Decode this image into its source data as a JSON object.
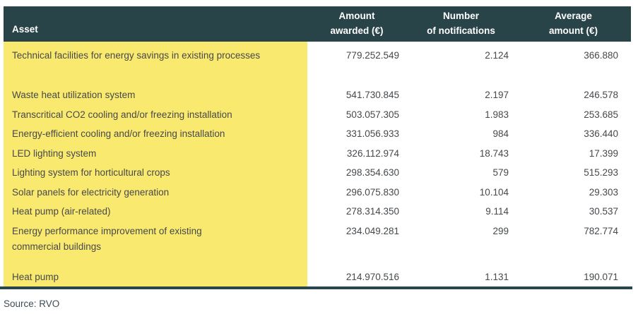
{
  "table": {
    "header": {
      "asset": "Asset",
      "amount_l1": "Amount",
      "amount_l2": "awarded (€)",
      "number_l1": "Number",
      "number_l2": "of notifications",
      "average_l1": "Average",
      "average_l2": "amount (€)"
    },
    "rows": [
      {
        "asset": "Technical facilities for energy savings in existing processes",
        "amount": "779.252.549",
        "notifications": "2.124",
        "average": "366.880"
      },
      {
        "asset": "Waste heat utilization system",
        "amount": "541.730.845",
        "notifications": "2.197",
        "average": "246.578"
      },
      {
        "asset": "Transcritical CO2 cooling and/or freezing installation",
        "amount": "503.057.305",
        "notifications": "1.983",
        "average": "253.685"
      },
      {
        "asset": "Energy-efficient cooling and/or freezing installation",
        "amount": "331.056.933",
        "notifications": "984",
        "average": "336.440"
      },
      {
        "asset": "LED lighting system",
        "amount": "326.112.974",
        "notifications": "18.743",
        "average": "17.399"
      },
      {
        "asset": "Lighting system for horticultural crops",
        "amount": "298.354.630",
        "notifications": "579",
        "average": "515.293"
      },
      {
        "asset": "Solar panels for electricity generation",
        "amount": "296.075.830",
        "notifications": "10.104",
        "average": "29.303"
      },
      {
        "asset": "Heat pump (air-related)",
        "amount": "278.314.350",
        "notifications": "9.114",
        "average": "30.537"
      },
      {
        "asset": "Energy performance improvement of existing commercial buildings",
        "amount": "234.049.281",
        "notifications": "299",
        "average": "782.774"
      },
      {
        "asset": "Heat pump",
        "amount": "214.970.516",
        "notifications": "1.131",
        "average": "190.071"
      }
    ]
  },
  "source": "Source: RVO",
  "colors": {
    "header_bg": "#294449",
    "highlight": "#fae96f",
    "text": "#45494c",
    "header_text": "#ffffff",
    "rule": "#2b454c",
    "source_text": "#3d4b54"
  }
}
